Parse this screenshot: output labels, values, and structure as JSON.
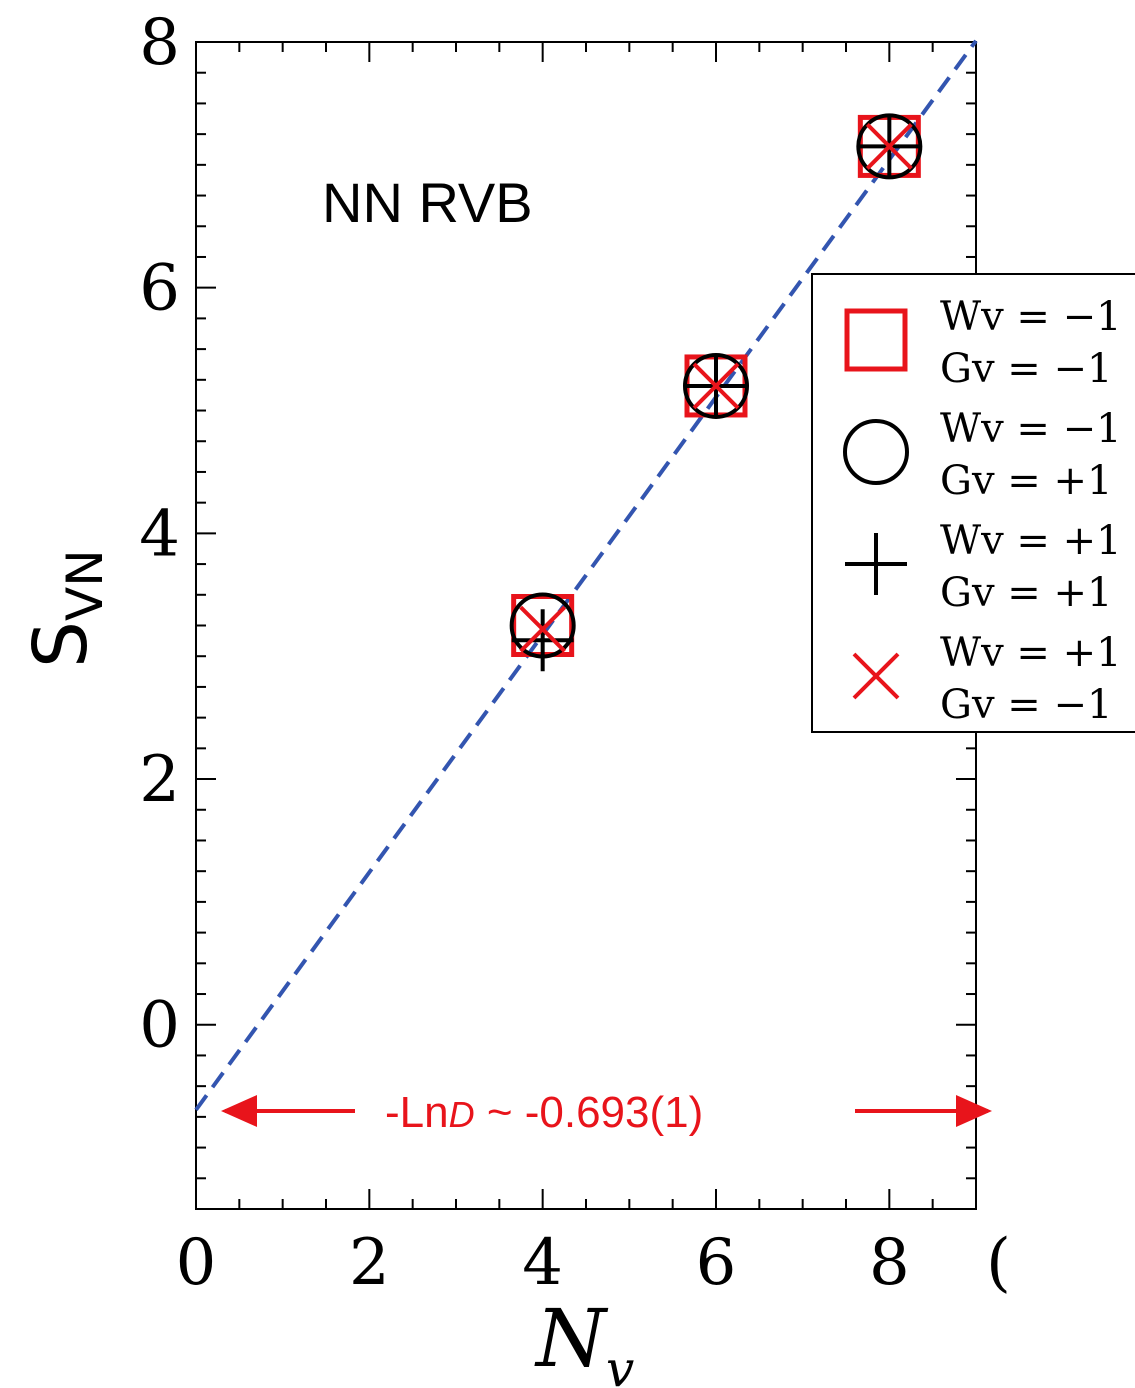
{
  "chart_data": {
    "type": "scatter",
    "title": "",
    "annotation": "NN RVB",
    "xlabel": "N",
    "xlabel_sub": "v",
    "ylabel": "S",
    "ylabel_sub": "VN",
    "xlim": [
      0,
      9
    ],
    "ylim": [
      -1.5,
      8
    ],
    "xticks": [
      "0",
      "2",
      "4",
      "6",
      "8",
      "("
    ],
    "yticks": [
      "0",
      "2",
      "4",
      "6",
      "8"
    ],
    "series": [
      {
        "name": "Wv = −1, Gv = −1",
        "marker": "square",
        "color": "#e8141b",
        "x": [
          4,
          6,
          8
        ],
        "y": [
          3.25,
          5.2,
          7.15
        ]
      },
      {
        "name": "Wv = −1, Gv = +1",
        "marker": "circle",
        "color": "#000000",
        "x": [
          4,
          6,
          8
        ],
        "y": [
          3.25,
          5.2,
          7.15
        ]
      },
      {
        "name": "Wv = +1, Gv = +1",
        "marker": "plus",
        "color": "#000000",
        "x": [
          4,
          6,
          8
        ],
        "y": [
          3.13,
          5.2,
          7.15
        ]
      },
      {
        "name": "Wv = +1, Gv = −1",
        "marker": "x",
        "color": "#e8141b",
        "x": [
          4,
          6,
          8
        ],
        "y": [
          3.22,
          5.2,
          7.15
        ]
      }
    ],
    "fit_line": {
      "slope": 0.967,
      "intercept": -0.693,
      "color": "#3355b0",
      "style": "dashed"
    },
    "intercept_annotation": {
      "prefix": "-Ln",
      "symbol": "D",
      "suffix": " ~ -0.693(1)",
      "y": -0.85
    },
    "legend": {
      "placement": "right",
      "entries": [
        {
          "marker": "square",
          "color": "#e8141b",
          "line1": "Wv = −1",
          "line2": "Gv = −1"
        },
        {
          "marker": "circle",
          "color": "#000000",
          "line1": "Wv = −1",
          "line2": "Gv = +1"
        },
        {
          "marker": "plus",
          "color": "#000000",
          "line1": "Wv = +1",
          "line2": "Gv = +1"
        },
        {
          "marker": "x",
          "color": "#e8141b",
          "line1": "Wv = +1",
          "line2": "Gv = −1"
        }
      ]
    },
    "grid": false
  }
}
